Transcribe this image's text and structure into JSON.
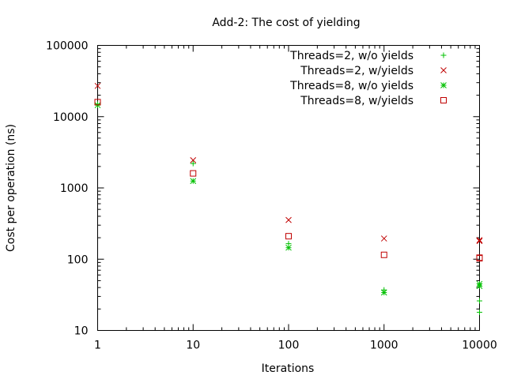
{
  "chart_data": {
    "type": "scatter",
    "title": "Add-2: The cost of yielding",
    "xlabel": "Iterations",
    "ylabel": "Cost per operation (ns)",
    "xscale": "log",
    "yscale": "log",
    "xlim": [
      1,
      10000
    ],
    "ylim": [
      10,
      100000
    ],
    "x_ticks": [
      {
        "value": 1,
        "label": "1"
      },
      {
        "value": 10,
        "label": "10"
      },
      {
        "value": 100,
        "label": "100"
      },
      {
        "value": 1000,
        "label": "1000"
      },
      {
        "value": 10000,
        "label": "10000"
      }
    ],
    "y_ticks": [
      {
        "value": 10,
        "label": "10"
      },
      {
        "value": 100,
        "label": "100"
      },
      {
        "value": 1000,
        "label": "1000"
      },
      {
        "value": 10000,
        "label": "10000"
      },
      {
        "value": 100000,
        "label": "100000"
      }
    ],
    "grid": false,
    "legend_position": "top-right",
    "series": [
      {
        "name": "Threads=2, w/o yields",
        "color": "#00c000",
        "marker": "plus",
        "points": [
          {
            "x": 1,
            "y": 15000
          },
          {
            "x": 10,
            "y": 2200
          },
          {
            "x": 100,
            "y": 165
          },
          {
            "x": 1000,
            "y": 37
          },
          {
            "x": 10000,
            "y": 26
          },
          {
            "x": 10000,
            "y": 18
          }
        ]
      },
      {
        "name": "Threads=2, w/yields",
        "color": "#c00000",
        "marker": "cross",
        "points": [
          {
            "x": 1,
            "y": 27000
          },
          {
            "x": 10,
            "y": 2450
          },
          {
            "x": 100,
            "y": 355
          },
          {
            "x": 1000,
            "y": 195
          },
          {
            "x": 10000,
            "y": 185
          },
          {
            "x": 10000,
            "y": 180
          }
        ]
      },
      {
        "name": "Threads=8, w/o yields",
        "color": "#00c000",
        "marker": "star",
        "points": [
          {
            "x": 1,
            "y": 14500
          },
          {
            "x": 10,
            "y": 1250
          },
          {
            "x": 100,
            "y": 145
          },
          {
            "x": 1000,
            "y": 34
          },
          {
            "x": 10000,
            "y": 45
          },
          {
            "x": 10000,
            "y": 42
          }
        ]
      },
      {
        "name": "Threads=8, w/yields",
        "color": "#c00000",
        "marker": "square",
        "points": [
          {
            "x": 1,
            "y": 16000
          },
          {
            "x": 10,
            "y": 1600
          },
          {
            "x": 100,
            "y": 210
          },
          {
            "x": 1000,
            "y": 115
          },
          {
            "x": 10000,
            "y": 105
          },
          {
            "x": 10000,
            "y": 103
          }
        ]
      }
    ]
  }
}
